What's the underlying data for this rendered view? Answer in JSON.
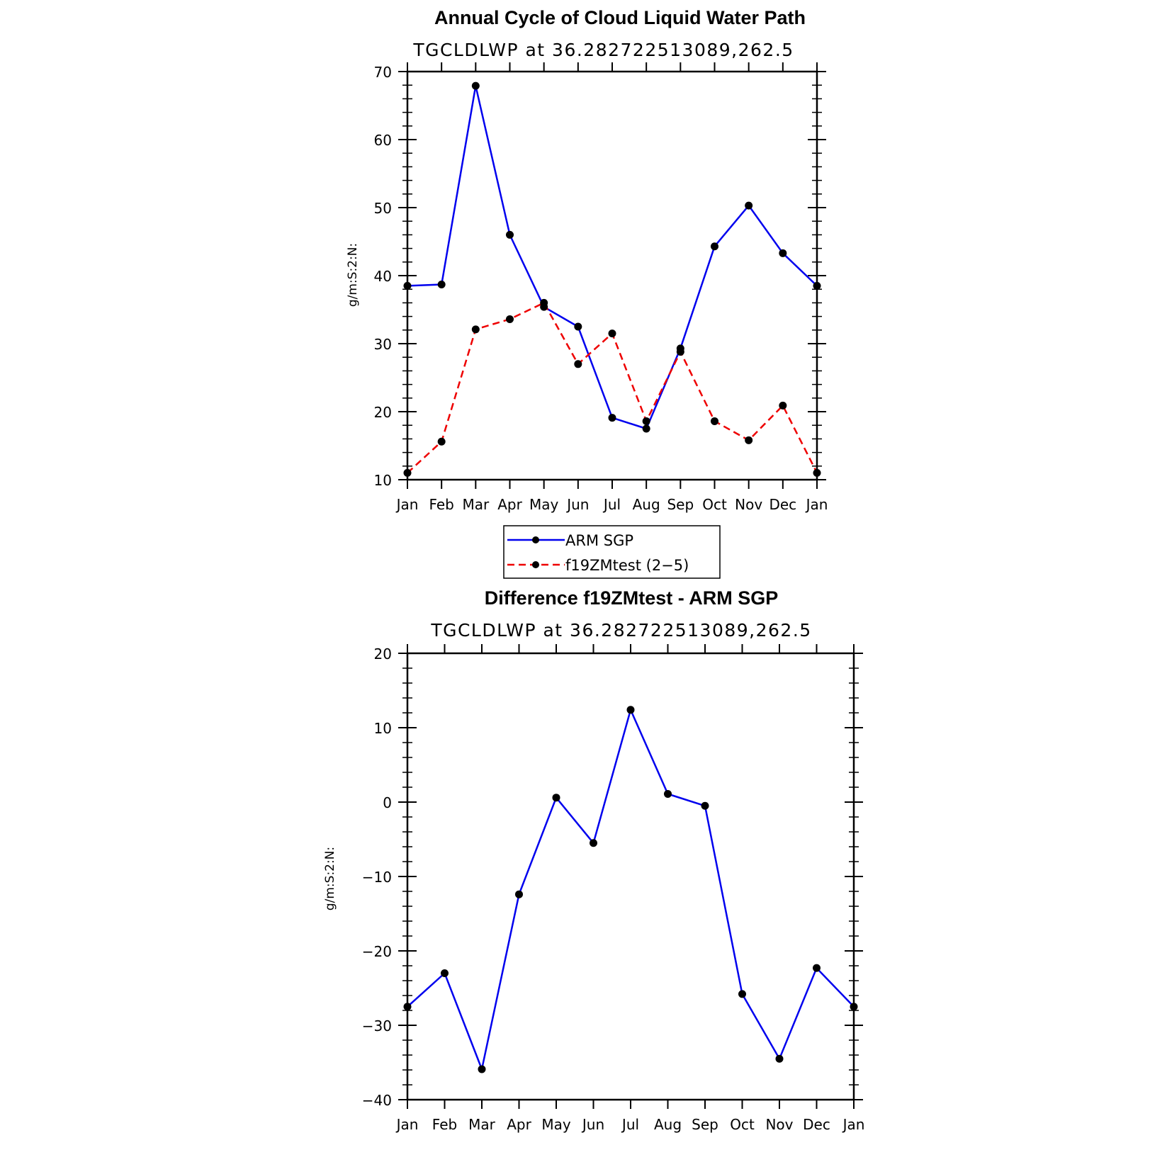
{
  "chart_data": [
    {
      "type": "line",
      "title": "Annual Cycle of Cloud Liquid Water Path",
      "subtitle": "TGCLDLWP at 36.282722513089,262.5",
      "xlabel": "",
      "ylabel": "g/m:S:2:N:",
      "categories": [
        "Jan",
        "Feb",
        "Mar",
        "Apr",
        "May",
        "Jun",
        "Jul",
        "Aug",
        "Sep",
        "Oct",
        "Nov",
        "Dec",
        "Jan"
      ],
      "ylim": [
        10,
        70
      ],
      "yticks": [
        10,
        20,
        30,
        40,
        50,
        60,
        70
      ],
      "grid": false,
      "legend_position": "bottom",
      "series": [
        {
          "name": "ARM SGP",
          "color": "#0000ee",
          "dash": "solid",
          "values": [
            38.5,
            38.7,
            67.9,
            46.0,
            35.4,
            32.5,
            19.1,
            17.5,
            29.3,
            44.3,
            50.3,
            43.3,
            38.5
          ]
        },
        {
          "name": "f19ZMtest (2−5)",
          "color": "#ee0000",
          "dash": "dashed",
          "values": [
            11.0,
            15.6,
            32.1,
            33.6,
            36.0,
            27.0,
            31.5,
            18.6,
            28.8,
            18.6,
            15.8,
            20.9,
            11.0
          ]
        }
      ]
    },
    {
      "type": "line",
      "title": "Difference f19ZMtest - ARM SGP",
      "subtitle": "TGCLDLWP at 36.282722513089,262.5",
      "xlabel": "",
      "ylabel": "g/m:S:2:N:",
      "categories": [
        "Jan",
        "Feb",
        "Mar",
        "Apr",
        "May",
        "Jun",
        "Jul",
        "Aug",
        "Sep",
        "Oct",
        "Nov",
        "Dec",
        "Jan"
      ],
      "ylim": [
        -40,
        20
      ],
      "yticks": [
        -40,
        -30,
        -20,
        -10,
        0,
        10,
        20
      ],
      "ytick_labels": [
        "−40",
        "−30",
        "−20",
        "−10",
        "0",
        "10",
        "20"
      ],
      "grid": false,
      "series": [
        {
          "color": "#0000ee",
          "dash": "solid",
          "values": [
            -27.5,
            -23.0,
            -35.9,
            -12.4,
            0.6,
            -5.5,
            12.4,
            1.1,
            -0.5,
            -25.8,
            -34.5,
            -22.3,
            -27.5
          ]
        }
      ]
    }
  ]
}
